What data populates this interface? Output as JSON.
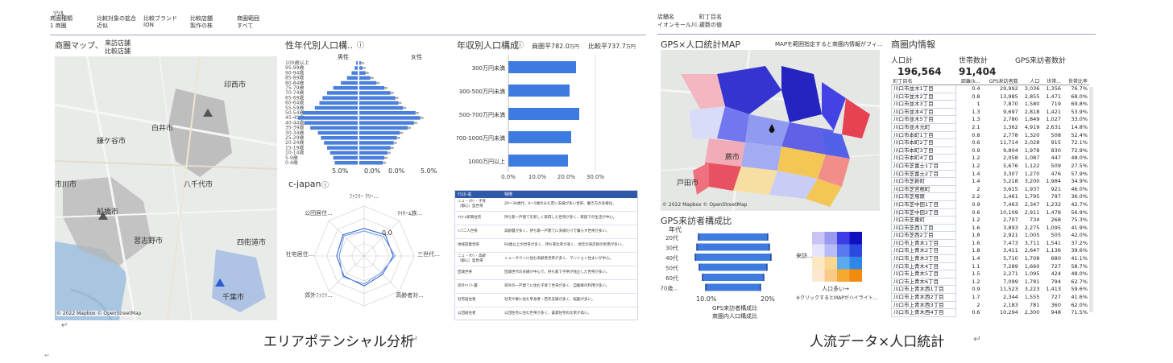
{
  "left": {
    "top_label": "ｿｿﾙ",
    "filters": [
      {
        "label": "商圏種類",
        "value": "1 商圏"
      },
      {
        "label": "比較対象の拡合",
        "value": "近似"
      },
      {
        "label": "比較ブランド",
        "value": "ION"
      },
      {
        "label": "比較店舗",
        "value": "製作の株"
      },
      {
        "label": "商圏範囲",
        "value": "すべて"
      }
    ],
    "map": {
      "title": "商圏マップ、",
      "legend_a": "来訪店舗",
      "legend_b": "比較店舗",
      "place_names": [
        "印西市",
        "白井市",
        "鎌ケ谷市",
        "八千代市",
        "市川市",
        "船橋市",
        "習志野市",
        "四街道市",
        "千葉市"
      ],
      "attribution": "© 2022 Mapbox © OpenStreetMap"
    },
    "pyramid": {
      "title": "性年代別人口構..",
      "male": "男性",
      "female": "女性",
      "x_ticks": [
        "5.0%",
        "0.0%",
        "0.0%",
        "5.0%"
      ]
    },
    "income": {
      "title": "年収別人口構成",
      "summary_a": "商圏平782.0",
      "summary_a_unit": "万円",
      "summary_b": "比較平737.7",
      "summary_b_unit": "万円",
      "x_ticks": [
        "0.0%",
        "10.0%",
        "20.0%",
        "30.0%"
      ]
    },
    "radar": {
      "title": "c-japan",
      "value_label": "0.0"
    },
    "table_headers": [
      "ｸﾗｽﾀｰ名",
      "特徴"
    ],
    "table_rows": [
      {
        "name": "ニュ ｰ ﾀｳﾝ ･ 子育\n（都心）型世帯",
        "desc": "20～30歳代、0～5歳のまだ若い夫婦が多い世帯、働き方の多様化。"
      },
      {
        "name": "ﾏｲﾎｰﾑ新興住宅",
        "desc": "持ち家一戸建てを新しく取得した世帯が多く、家族での生活が中心。"
      },
      {
        "name": "ｼﾆｱ二人世帯",
        "desc": "高齢層が多く、持ち家一戸建てに夫婦だけで暮らす世帯が多い。"
      },
      {
        "name": "地域密着世帯",
        "desc": "60歳以上の世帯が多く、持ち家比率が高く、地元の商店街の利用が多い。"
      },
      {
        "name": "ニュ ｰ ﾀｳﾝ ･ 高齢\n（都心）型世帯",
        "desc": "ニュータウンに住む高齢者世帯が多く、マンション住まいが中心。"
      },
      {
        "name": "団塊世帯",
        "desc": "団塊世代の夫婦が中心で、持ち家で子供が独立した世帯が多い。"
      },
      {
        "name": "郊外ﾌｧﾐﾘｰ層",
        "desc": "郊外の一戸建てに住む子育て世帯が多く、自動車の利用が多い。"
      },
      {
        "name": "社宅居住者",
        "desc": "社宅や寮に住む単身者・若年夫婦が多く、転勤が多い。"
      },
      {
        "name": "公団居住者",
        "desc": "公団住宅に住む世帯が多く、賃貸住宅の比率が高い。"
      }
    ],
    "caption": "エリアポテンシャル分析"
  },
  "right": {
    "filters": [
      {
        "label": "店舗名",
        "value": "イオンモール川..."
      },
      {
        "label": "町丁目名",
        "value": "複数の値"
      }
    ],
    "map": {
      "title": "GPS×人口統計MAP",
      "note": "MAPを範囲指定すると商圏内情報がフィ...",
      "place_names": [
        "蕨市",
        "戸田市"
      ],
      "attribution": "© 2022 Mapbox © OpenStreetMap"
    },
    "info": {
      "title": "商圏内情報",
      "kpi_population_label": "人口計",
      "kpi_population": "196,564",
      "kpi_households_label": "世帯数計",
      "kpi_households": "91,404",
      "kpi_gps_label": "GPS来訪者数計",
      "columns": [
        "町丁目名",
        "距離(k...",
        "GPS来訪者数",
        "人口",
        "世帯...",
        "世帯比率"
      ],
      "rows": [
        [
          "川口市並木1丁目",
          "0.4",
          "29,992",
          "3,036",
          "1,356",
          "76.7%"
        ],
        [
          "川口市並木2丁目",
          "0.8",
          "13,985",
          "2,855",
          "1,471",
          "68.0%"
        ],
        [
          "川口市並木3丁目",
          "1",
          "7,870",
          "1,580",
          "719",
          "69.8%"
        ],
        [
          "川口市並木4丁目",
          "1.3",
          "9,697",
          "2,818",
          "1,421",
          "53.9%"
        ],
        [
          "川口市並木5丁目",
          "1.3",
          "2,780",
          "1,849",
          "1,027",
          "33.0%"
        ],
        [
          "川口市並木元町",
          "2.1",
          "1,362",
          "4,919",
          "2,631",
          "14.8%"
        ],
        [
          "川口市本町1丁目",
          "0.8",
          "2,778",
          "1,320",
          "508",
          "52.4%"
        ],
        [
          "川口市本町2丁目",
          "0.6",
          "11,714",
          "2,028",
          "915",
          "72.1%"
        ],
        [
          "川口市本町3丁目",
          "0.9",
          "9,804",
          "1,978",
          "830",
          "72.9%"
        ],
        [
          "川口市本町4丁目",
          "1.2",
          "2,058",
          "1,087",
          "447",
          "48.0%"
        ],
        [
          "川口市芝富士1丁目",
          "1.2",
          "5,676",
          "1,122",
          "509",
          "27.5%"
        ],
        [
          "川口市芝富士2丁目",
          "1.4",
          "3,307",
          "1,270",
          "476",
          "57.9%"
        ],
        [
          "川口市芝新町",
          "1.4",
          "5,218",
          "3,200",
          "1,984",
          "34.9%"
        ],
        [
          "川口市芝宮根町",
          "2",
          "3,615",
          "1,937",
          "921",
          "46.0%"
        ],
        [
          "川口市芝塚原",
          "2.2",
          "1,461",
          "1,795",
          "797",
          "36.0%"
        ],
        [
          "川口市芝中田1丁目",
          "0.9",
          "7,463",
          "2,347",
          "1,232",
          "42.7%"
        ],
        [
          "川口市芝中田2丁目",
          "0.6",
          "10,109",
          "2,911",
          "1,478",
          "56.9%"
        ],
        [
          "川口市芝東町",
          "1.2",
          "2,707",
          "734",
          "268",
          "75.3%"
        ],
        [
          "川口市芝西1丁目",
          "1.6",
          "3,893",
          "2,275",
          "1,095",
          "41.9%"
        ],
        [
          "川口市芝西2丁目",
          "1.8",
          "2,921",
          "1,005",
          "505",
          "42.0%"
        ],
        [
          "川口市上青木1丁目",
          "1.6",
          "7,473",
          "3,711",
          "1,541",
          "37.2%"
        ],
        [
          "川口市上青木2丁目",
          "1.8",
          "3,411",
          "2,647",
          "1,136",
          "39.6%"
        ],
        [
          "川口市上青木3丁目",
          "1.4",
          "5,710",
          "1,708",
          "680",
          "41.1%"
        ],
        [
          "川口市上青木4丁目",
          "1.1",
          "7,289",
          "1,660",
          "727",
          "58.7%"
        ],
        [
          "川口市上青木5丁目",
          "1.5",
          "2,271",
          "1,095",
          "424",
          "48.0%"
        ],
        [
          "川口市上青木6丁目",
          "1.2",
          "7,099",
          "1,781",
          "794",
          "62.7%"
        ],
        [
          "川口市上青木西1丁目",
          "0.9",
          "11,523",
          "3,223",
          "1,413",
          "59.6%"
        ],
        [
          "川口市上青木西2丁目",
          "1.7",
          "2,344",
          "1,555",
          "727",
          "41.6%"
        ],
        [
          "川口市上青木西3丁目",
          "2",
          "2,183",
          "781",
          "360",
          "62.0%"
        ],
        [
          "川口市上青木西4丁目",
          "0.6",
          "10,294",
          "2,300",
          "948",
          "71.5%"
        ]
      ]
    },
    "gps": {
      "title": "GPS来訪者構成比",
      "age_label": "年代",
      "ages": [
        "20代",
        "30代",
        "40代",
        "50代",
        "60代",
        "70歳..."
      ],
      "x_ticks": [
        "10.0%",
        "20%"
      ],
      "legend_a": "GPS来訪者構成比",
      "legend_b": "商圏内人口構成比",
      "heat_y_label": "来訪...",
      "heat_x_label": "人口多い→",
      "heat_note": "※クリックするとMAPがハイライト..."
    },
    "caption": "人流データ×人口統計"
  }
}
